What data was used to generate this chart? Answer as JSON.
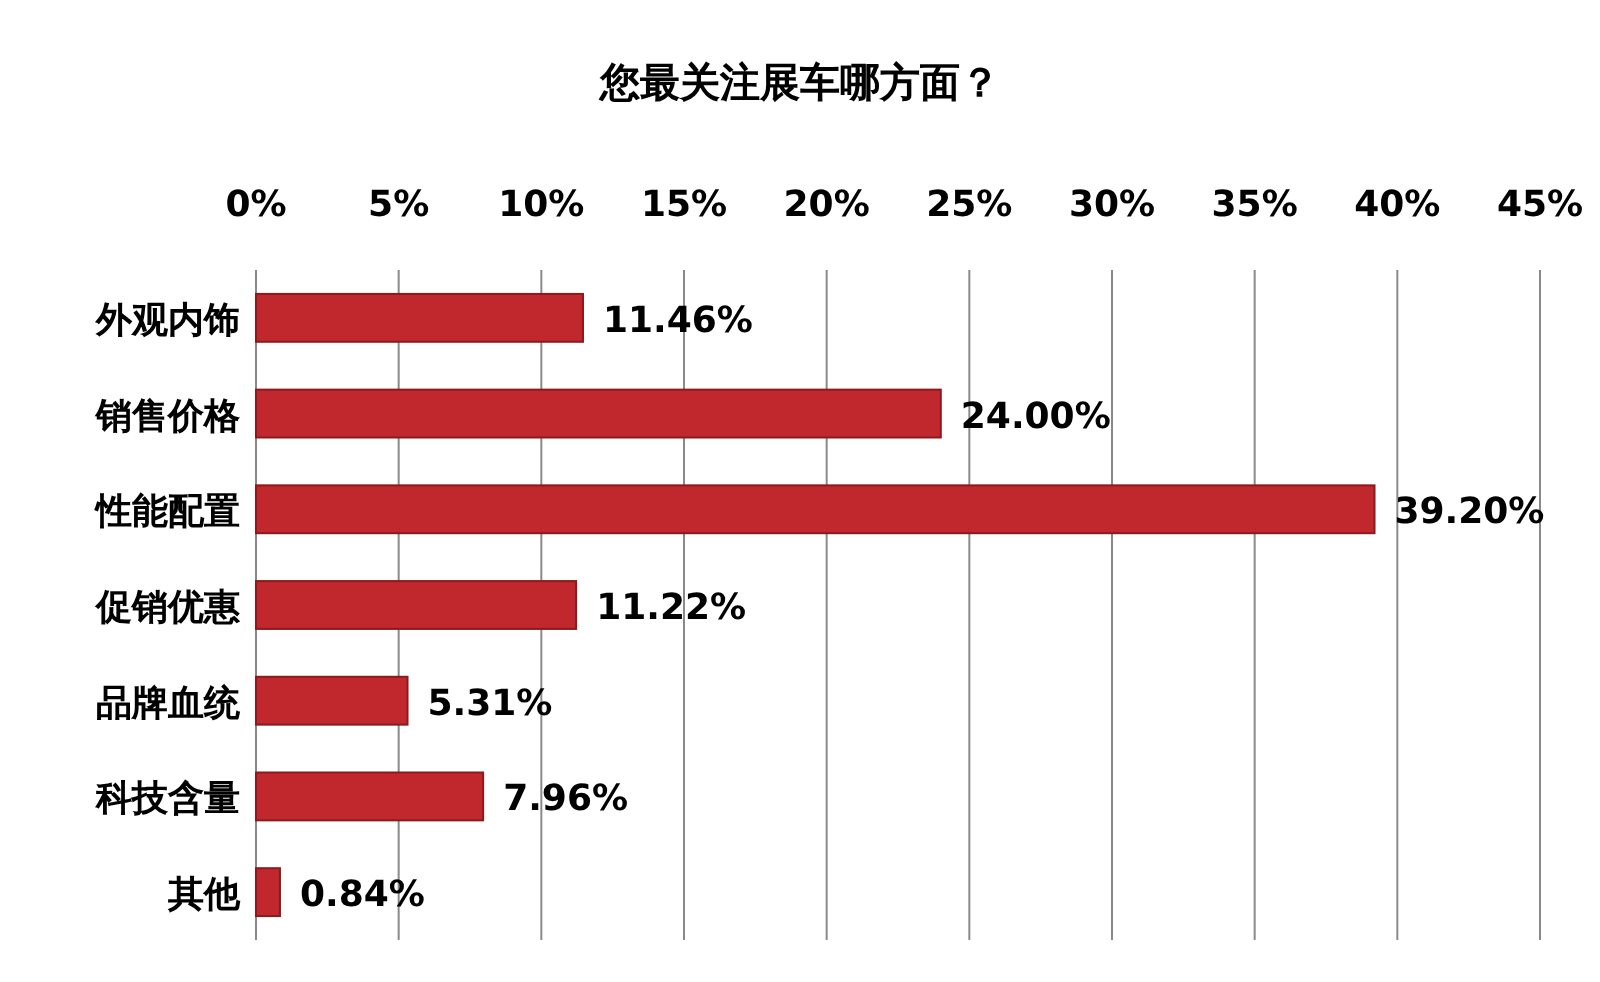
{
  "chart_data": {
    "type": "bar",
    "orientation": "horizontal",
    "title": "您最关注展车哪方面？",
    "categories": [
      "外观内饰",
      "销售价格",
      "性能配置",
      "促销优惠",
      "品牌血统",
      "科技含量",
      "其他"
    ],
    "values": [
      11.46,
      24.0,
      39.2,
      11.22,
      5.31,
      7.96,
      0.84
    ],
    "value_labels": [
      "11.46%",
      "24.00%",
      "39.20%",
      "11.22%",
      "5.31%",
      "7.96%",
      "0.84%"
    ],
    "color": "#c0282d",
    "xlim": [
      0,
      45
    ],
    "xticks": [
      {
        "value": 0,
        "label": "0%"
      },
      {
        "value": 5,
        "label": "5%"
      },
      {
        "value": 10,
        "label": "10%"
      },
      {
        "value": 15,
        "label": "15%"
      },
      {
        "value": 20,
        "label": "20%"
      },
      {
        "value": 25,
        "label": "25%"
      },
      {
        "value": 30,
        "label": "30%"
      },
      {
        "value": 35,
        "label": "35%"
      },
      {
        "value": 40,
        "label": "40%"
      },
      {
        "value": 45,
        "label": "45%"
      }
    ],
    "grid": "x"
  }
}
